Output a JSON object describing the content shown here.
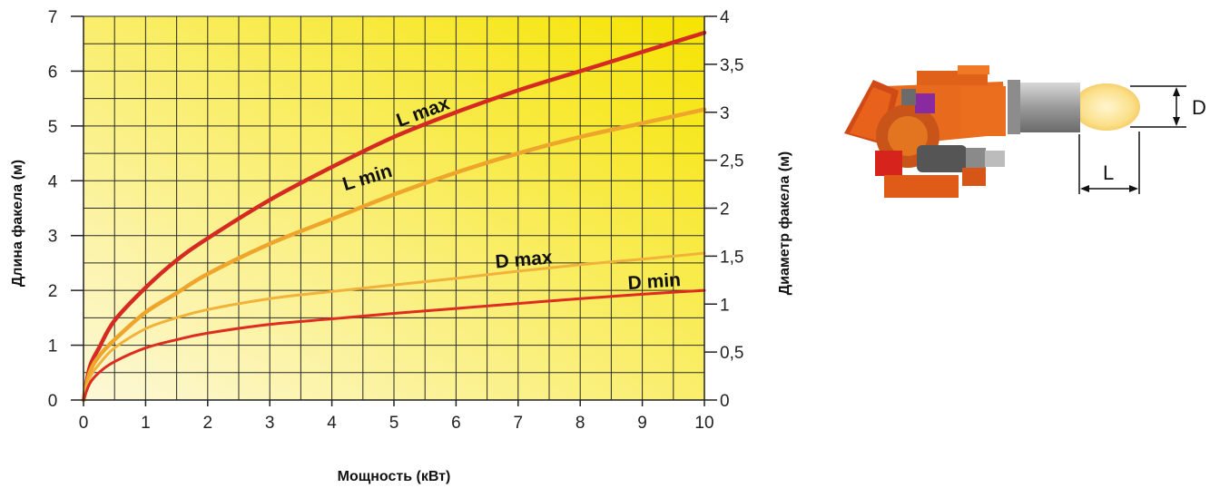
{
  "chart_data": {
    "type": "line",
    "xlabel": "Мощность (кВт)",
    "ylabel_left": "Длина факела (м)",
    "ylabel_right": "Диаметр факела (м)",
    "xlim": [
      0,
      10
    ],
    "ylim_left": [
      0,
      7
    ],
    "ylim_right": [
      0,
      4
    ],
    "grid": true,
    "x_ticks": [
      0,
      1,
      2,
      3,
      4,
      5,
      6,
      7,
      8,
      9,
      10
    ],
    "x_tick_labels": [
      "0",
      "1",
      "2",
      "3",
      "4",
      "5",
      "6",
      "7",
      "8",
      "9",
      "10"
    ],
    "y_left_ticks": [
      0,
      1,
      2,
      3,
      4,
      5,
      6,
      7
    ],
    "y_left_tick_labels": [
      "0",
      "1",
      "2",
      "3",
      "4",
      "5",
      "6",
      "7"
    ],
    "y_right_ticks": [
      0,
      0.5,
      1,
      1.5,
      2,
      2.5,
      3,
      3.5,
      4
    ],
    "y_right_tick_labels": [
      "0",
      "0,5",
      "1",
      "1,5",
      "2",
      "2,5",
      "3",
      "3,5",
      "4"
    ],
    "colors": {
      "l_max": "#d42a22",
      "l_min": "#eea52c",
      "d_max": "#f0b23a",
      "d_min": "#de2d20",
      "grid": "#2a2a2a",
      "bg_light": "#fdf8d8",
      "bg_dark": "#f6e400"
    },
    "series": [
      {
        "name": "L max",
        "axis": "left",
        "x": [
          0,
          0.1,
          0.25,
          0.5,
          1,
          1.5,
          2,
          3,
          4,
          5,
          6,
          7,
          8,
          9,
          10
        ],
        "y": [
          0,
          0.6,
          0.95,
          1.45,
          2.05,
          2.55,
          2.95,
          3.65,
          4.25,
          4.8,
          5.25,
          5.65,
          6.0,
          6.35,
          6.7
        ]
      },
      {
        "name": "L min",
        "axis": "left",
        "x": [
          0,
          0.1,
          0.25,
          0.5,
          1,
          1.5,
          2,
          3,
          4,
          5,
          6,
          7,
          8,
          9,
          10
        ],
        "y": [
          0,
          0.5,
          0.8,
          1.1,
          1.6,
          1.95,
          2.3,
          2.85,
          3.3,
          3.75,
          4.15,
          4.5,
          4.8,
          5.05,
          5.3
        ]
      },
      {
        "name": "D max",
        "axis": "left",
        "x": [
          0,
          0.1,
          0.25,
          0.5,
          1,
          1.5,
          2,
          3,
          4,
          5,
          6,
          7,
          8,
          9,
          10
        ],
        "y": [
          0,
          0.4,
          0.65,
          0.95,
          1.3,
          1.5,
          1.65,
          1.85,
          1.98,
          2.1,
          2.22,
          2.35,
          2.47,
          2.57,
          2.68
        ]
      },
      {
        "name": "D min",
        "axis": "left",
        "x": [
          0,
          0.1,
          0.25,
          0.5,
          1,
          1.5,
          2,
          3,
          4,
          5,
          6,
          7,
          8,
          9,
          10
        ],
        "y": [
          0,
          0.3,
          0.5,
          0.7,
          0.95,
          1.1,
          1.22,
          1.38,
          1.48,
          1.58,
          1.67,
          1.76,
          1.85,
          1.93,
          2.0
        ]
      }
    ],
    "series_label_positions": [
      {
        "name": "L max",
        "x": 5.5,
        "y": 5.15
      },
      {
        "name": "L min",
        "x": 4.6,
        "y": 3.95
      },
      {
        "name": "D max",
        "x": 7.1,
        "y": 2.45
      },
      {
        "name": "D min",
        "x": 9.2,
        "y": 2.05
      }
    ]
  },
  "illustration": {
    "dimension_d": "D",
    "dimension_l": "L"
  }
}
